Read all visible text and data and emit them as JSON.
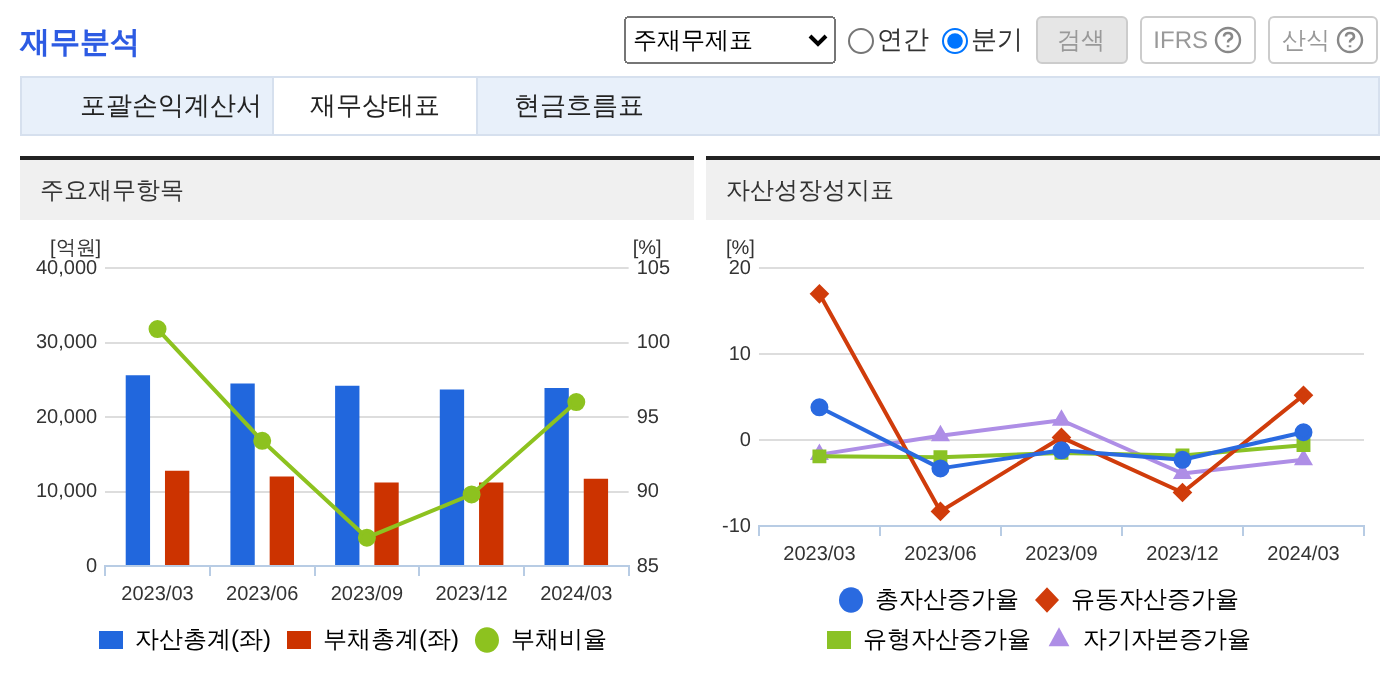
{
  "chart_data": [
    {
      "type": "other",
      "title": "재무분석",
      "annotations": [
        "주재무제표",
        "연간",
        "분기",
        "검색",
        "IFRS",
        "산식",
        "포괄손익계산서",
        "재무상태표",
        "현금흐름표"
      ]
    },
    {
      "type": "bar",
      "title": "주요재무항목",
      "categories": [
        "2023/03",
        "2023/06",
        "2023/09",
        "2023/12",
        "2024/03"
      ],
      "ylabel": "[억원]",
      "y2label": "[%]",
      "series": [
        {
          "name": "자산총계(좌)",
          "color": "#2167dd",
          "values": [
            25600,
            24500,
            24200,
            23700,
            23900
          ]
        },
        {
          "name": "부채총계(좌)",
          "color": "#cc3300",
          "values": [
            12800,
            12000,
            11200,
            11200,
            11700
          ]
        },
        {
          "name": "부채비율",
          "type": "line",
          "axis": "y2",
          "marker": "circle",
          "color": "#8dc21f",
          "values": [
            100.9,
            93.4,
            86.9,
            89.8,
            96.0
          ]
        }
      ],
      "ylim": [
        0,
        40000
      ],
      "yticks": [
        0,
        {
          "value": 10000,
          "label": "10,000"
        },
        {
          "value": 20000,
          "label": "20,000"
        },
        {
          "value": 30000,
          "label": "30,000"
        },
        {
          "value": 40000,
          "label": "40,000"
        }
      ],
      "y2lim": [
        85,
        105
      ],
      "y2ticks": [
        85,
        90,
        95,
        100,
        105
      ],
      "grid": "y",
      "legend": "bottom"
    },
    {
      "type": "line",
      "title": "자산성장성지표",
      "categories": [
        "2023/03",
        "2023/06",
        "2023/09",
        "2023/12",
        "2024/03"
      ],
      "ylabel": "[%]",
      "series": [
        {
          "name": "총자산증가율",
          "color": "#2a6ae0",
          "marker": "circle",
          "values": [
            3.8,
            -3.3,
            -1.2,
            -2.3,
            0.9
          ]
        },
        {
          "name": "유동자산증가율",
          "color": "#d03c0b",
          "marker": "diamond",
          "values": [
            17.0,
            -8.3,
            0.3,
            -6.1,
            5.2
          ]
        },
        {
          "name": "유형자산증가율",
          "color": "#8ac225",
          "marker": "square",
          "values": [
            -1.9,
            -2.0,
            -1.5,
            -1.8,
            -0.6
          ]
        },
        {
          "name": "자기자본증가율",
          "color": "#ae8ee6",
          "marker": "triangle",
          "values": [
            -1.7,
            0.5,
            2.3,
            -3.9,
            -2.3
          ]
        }
      ],
      "ylim": [
        -10,
        20
      ],
      "yticks": [
        -10,
        0,
        10,
        20
      ],
      "grid": "y",
      "legend": "bottom"
    }
  ]
}
